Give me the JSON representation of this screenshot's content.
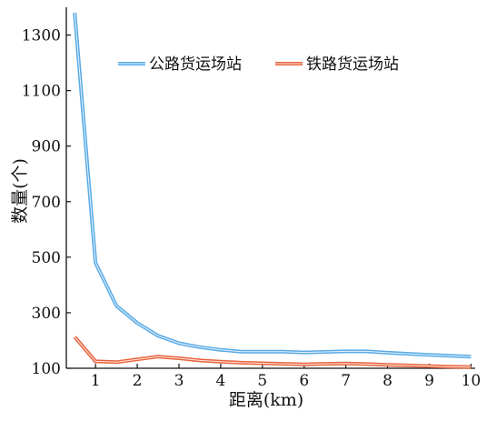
{
  "chart_data": {
    "type": "line",
    "title": "",
    "xlabel": "距离(km)",
    "ylabel": "数量(个)",
    "xlim": [
      0.3,
      10.1
    ],
    "ylim": [
      100,
      1400
    ],
    "xticks": [
      1,
      2,
      3,
      4,
      5,
      6,
      7,
      8,
      9,
      10
    ],
    "yticks": [
      100,
      300,
      500,
      700,
      900,
      1100,
      1300
    ],
    "grid": false,
    "legend": {
      "position": "top-right",
      "orientation": "horizontal"
    },
    "series": [
      {
        "name": "公路货运场站",
        "color": "#5aaae6",
        "x": [
          0.5,
          1.0,
          1.5,
          2.0,
          2.5,
          3.0,
          3.5,
          4.0,
          4.5,
          5.0,
          5.5,
          6.0,
          6.5,
          7.0,
          7.5,
          8.0,
          8.5,
          9.0,
          9.5,
          10.0
        ],
        "y": [
          1380,
          480,
          325,
          263,
          217,
          190,
          176,
          166,
          160,
          160,
          160,
          157,
          159,
          161,
          161,
          156,
          152,
          148,
          145,
          142
        ]
      },
      {
        "name": "铁路货运场站",
        "color": "#e8643f",
        "x": [
          0.5,
          1.0,
          1.5,
          2.0,
          2.5,
          3.0,
          3.5,
          4.0,
          4.5,
          5.0,
          5.5,
          6.0,
          6.5,
          7.0,
          7.5,
          8.0,
          8.5,
          9.0,
          9.5,
          10.0
        ],
        "y": [
          213,
          125,
          122,
          132,
          142,
          136,
          128,
          124,
          120,
          118,
          116,
          114,
          116,
          117,
          115,
          112,
          110,
          108,
          106,
          104
        ]
      }
    ]
  }
}
